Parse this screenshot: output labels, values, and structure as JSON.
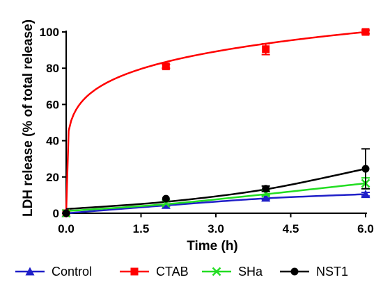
{
  "chart_data": {
    "type": "line",
    "xlabel": "Time (h)",
    "ylabel": "LDH release (% of total release)",
    "x": [
      0,
      2,
      4,
      6
    ],
    "xlim": [
      0,
      6
    ],
    "ylim": [
      0,
      100
    ],
    "xticks": [
      "0.0",
      "1.5",
      "3.0",
      "4.5",
      "6.0"
    ],
    "xtick_values": [
      0,
      1.5,
      3,
      4.5,
      6
    ],
    "yticks": [
      "0",
      "20",
      "40",
      "60",
      "80",
      "100"
    ],
    "ytick_values": [
      0,
      20,
      40,
      60,
      80,
      100
    ],
    "grid": false,
    "legend_position": "bottom",
    "series": [
      {
        "name": "Control",
        "color": "#1f1fc8",
        "marker": "triangle",
        "values": [
          0,
          4.5,
          8.5,
          10.5
        ],
        "errors": [
          0,
          0.5,
          1,
          1
        ],
        "fit": [
          0,
          4.3,
          8.2,
          10.5
        ]
      },
      {
        "name": "CTAB",
        "color": "#ff0000",
        "marker": "square",
        "values": [
          0,
          81,
          90.5,
          100
        ],
        "errors": [
          0,
          1,
          3,
          1
        ],
        "fit_curve": "log"
      },
      {
        "name": "SHa",
        "color": "#22dd22",
        "marker": "x",
        "values": [
          0,
          5.5,
          11,
          16.5
        ],
        "errors": [
          0,
          0.5,
          1,
          3
        ],
        "fit": [
          1.2,
          5,
          10.5,
          16.5
        ]
      },
      {
        "name": "NST1",
        "color": "#000000",
        "marker": "circle",
        "values": [
          0,
          8,
          13.5,
          24.5
        ],
        "errors": [
          0,
          0.5,
          1.5,
          11
        ],
        "fit": [
          2.3,
          6.3,
          13.2,
          24.5
        ]
      }
    ]
  }
}
